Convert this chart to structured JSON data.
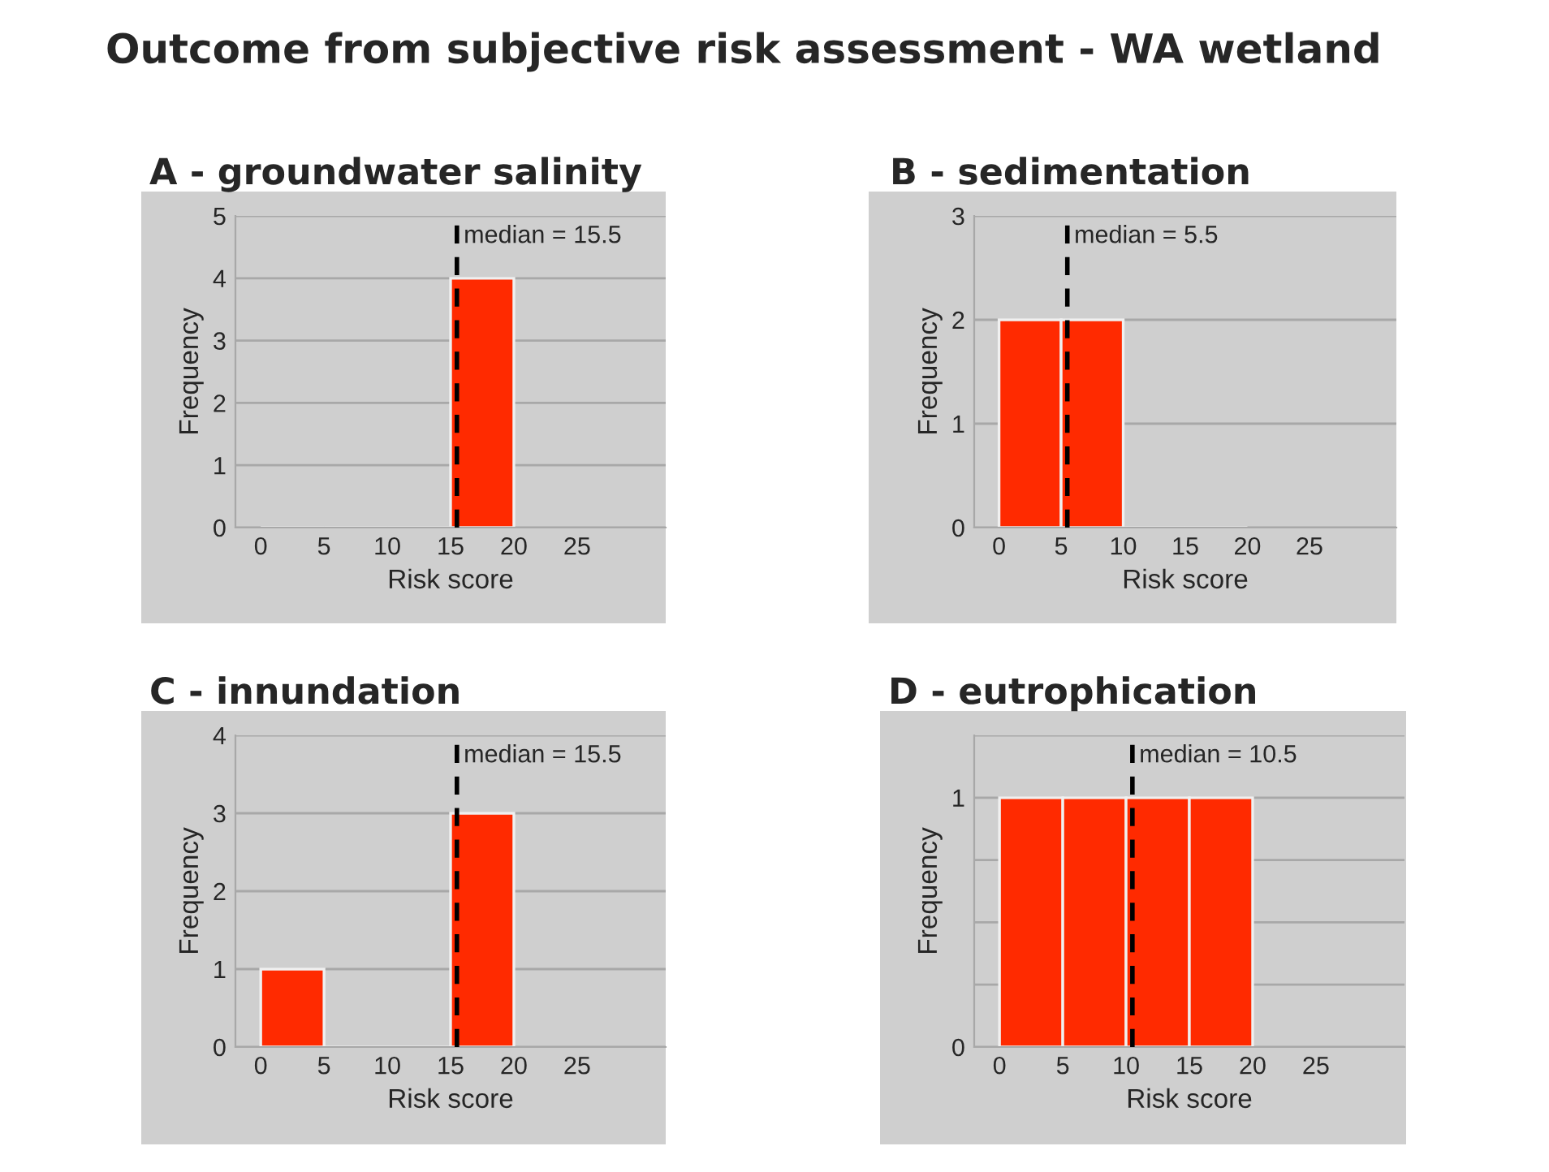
{
  "chart_data": [
    {
      "type": "histogram",
      "title": "A - groundwater salinity",
      "xlabel": "Risk score",
      "ylabel": "Frequency",
      "bins": [
        0,
        5,
        10,
        15,
        20
      ],
      "values": [
        0,
        0,
        0,
        4
      ],
      "color": "#ff2a00",
      "xlim": [
        -2,
        32
      ],
      "ylim": [
        0,
        5
      ],
      "xticks": [
        0,
        5,
        10,
        15,
        20,
        25
      ],
      "yticks": [
        0,
        1,
        2,
        3,
        4,
        5
      ],
      "grid": "y",
      "ref_lines": [
        {
          "axis": "x",
          "value": 15.5,
          "label": "median = 15.5",
          "color": "#000000",
          "line_style": "dashed"
        }
      ],
      "annotations": [
        "Outcome from subjective risk assessment - WA wetland"
      ]
    },
    {
      "type": "histogram",
      "title": "B - sedimentation",
      "xlabel": "Risk score",
      "ylabel": "Frequency",
      "bins": [
        0,
        5,
        10,
        15,
        20
      ],
      "values": [
        2,
        2,
        0,
        0
      ],
      "color": "#ff2a00",
      "xlim": [
        -2,
        32
      ],
      "ylim": [
        0,
        3
      ],
      "xticks": [
        0,
        5,
        10,
        15,
        20,
        25
      ],
      "yticks": [
        0,
        1,
        2,
        3
      ],
      "grid": "y",
      "ref_lines": [
        {
          "axis": "x",
          "value": 5.5,
          "label": "median = 5.5",
          "color": "#000000",
          "line_style": "dashed"
        }
      ]
    },
    {
      "type": "histogram",
      "title": "C - innundation",
      "xlabel": "Risk score",
      "ylabel": "Frequency",
      "bins": [
        0,
        5,
        10,
        15,
        20
      ],
      "values": [
        1,
        0,
        0,
        3
      ],
      "color": "#ff2a00",
      "xlim": [
        -2,
        32
      ],
      "ylim": [
        0,
        4
      ],
      "xticks": [
        0,
        5,
        10,
        15,
        20,
        25
      ],
      "yticks": [
        0,
        1,
        2,
        3,
        4
      ],
      "grid": "y",
      "ref_lines": [
        {
          "axis": "x",
          "value": 15.5,
          "label": "median = 15.5",
          "color": "#000000",
          "line_style": "dashed"
        }
      ]
    },
    {
      "type": "histogram",
      "title": "D - eutrophication",
      "xlabel": "Risk score",
      "ylabel": "Frequency",
      "bins": [
        0,
        5,
        10,
        15,
        20
      ],
      "values": [
        1,
        1,
        1,
        1
      ],
      "color": "#ff2a00",
      "xlim": [
        -2,
        32
      ],
      "ylim": [
        0,
        1.25
      ],
      "xticks": [
        0,
        5,
        10,
        15,
        20,
        25
      ],
      "yticks": [
        0,
        {
          "value": 0.25,
          "label": null
        },
        {
          "value": 0.5,
          "label": null
        },
        {
          "value": 0.75,
          "label": null
        },
        1,
        {
          "value": 1.25,
          "label": null
        }
      ],
      "grid": "y",
      "ref_lines": [
        {
          "axis": "x",
          "value": 10.5,
          "label": "median = 10.5",
          "color": "#000000",
          "line_style": "dashed"
        }
      ]
    }
  ]
}
